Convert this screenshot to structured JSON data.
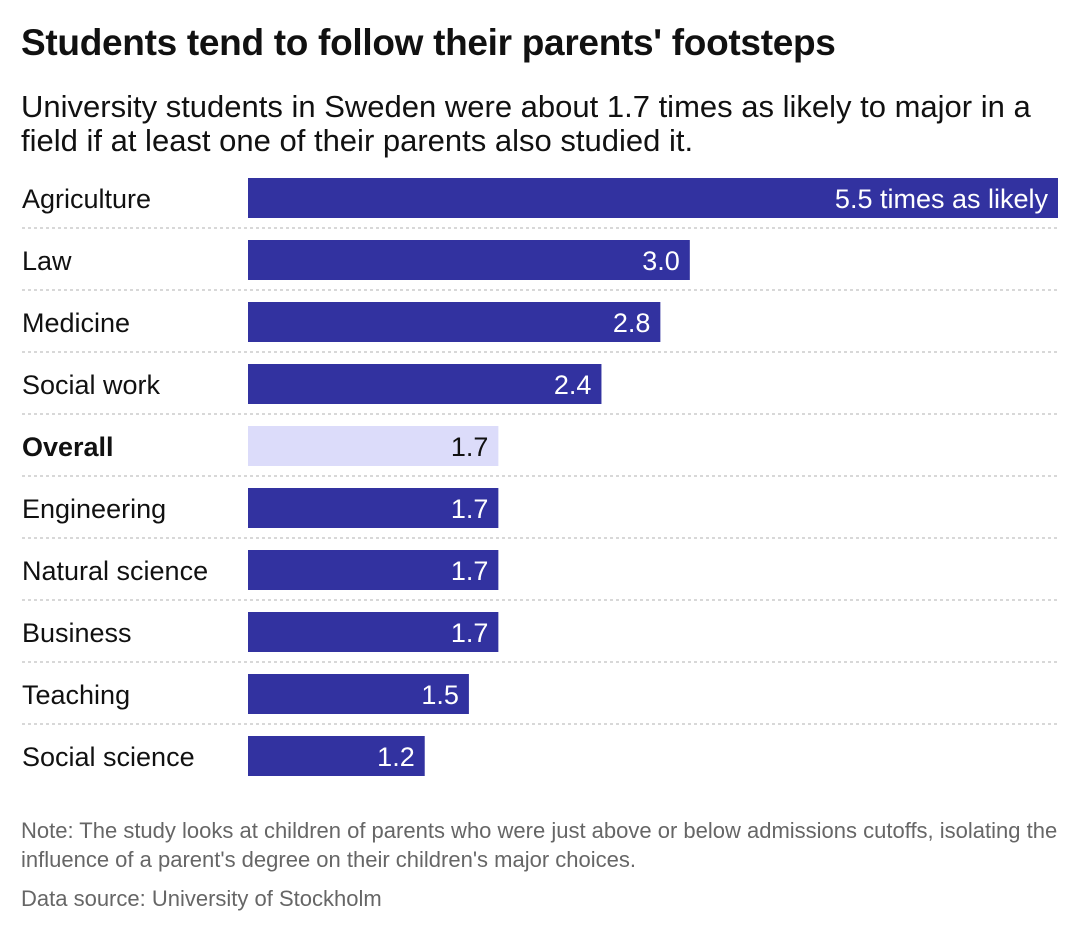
{
  "header": {
    "title": "Students tend to follow their parents' footsteps",
    "subtitle": "University students in Sweden were about 1.7 times as likely to major in a field if at least one of their parents also studied it."
  },
  "chart_data": {
    "type": "bar",
    "orientation": "horizontal",
    "title": "Students tend to follow their parents' footsteps",
    "subtitle": "University students in Sweden were about 1.7 times as likely to major in a field if at least one of their parents also studied it.",
    "xlabel": "",
    "ylabel": "",
    "categories": [
      "Agriculture",
      "Law",
      "Medicine",
      "Social work",
      "Overall",
      "Engineering",
      "Natural science",
      "Business",
      "Teaching",
      "Social science"
    ],
    "values": [
      5.5,
      3.0,
      2.8,
      2.4,
      1.7,
      1.7,
      1.7,
      1.7,
      1.5,
      1.2
    ],
    "value_labels": [
      "5.5 times as likely",
      "3.0",
      "2.8",
      "2.4",
      "1.7",
      "1.7",
      "1.7",
      "1.7",
      "1.5",
      "1.2"
    ],
    "highlight_category": "Overall",
    "xlim": [
      0,
      5.5
    ],
    "grid": false,
    "legend": "none",
    "colors": {
      "bar": "#3232a0",
      "bar_highlight": "#dcdcfa",
      "label_on_bar": "#ffffff",
      "label_on_highlight": "#111111",
      "separator": "#cccccc"
    }
  },
  "footer": {
    "note": "Note: The study looks at children of parents who were just above or below admissions cutoffs, isolating the influence of a parent's degree on their children's major choices.",
    "source": "Data source: University of Stockholm"
  }
}
